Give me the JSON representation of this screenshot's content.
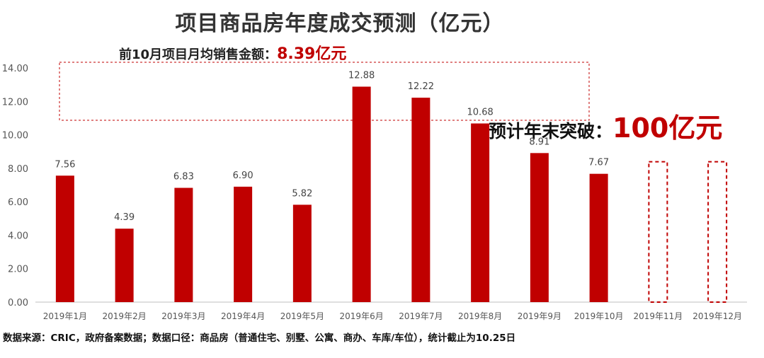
{
  "title": "项目商品房年度成交预测（亿元）",
  "avg_note": {
    "label": "前10月项目月均销售金额：",
    "value": "8.39亿元"
  },
  "forecast": {
    "label": "预计年末突破：",
    "value": "100亿元"
  },
  "source": "数据来源：CRIC，政府备案数据；数据口径：商品房（普通住宅、别墅、公寓、商办、车库/车位），统计截止为10.25日",
  "colors": {
    "bar": "#c00000",
    "accent": "#c00000"
  },
  "chart_data": {
    "type": "bar",
    "categories": [
      "2019年1月",
      "2019年2月",
      "2019年3月",
      "2019年4月",
      "2019年5月",
      "2019年6月",
      "2019年7月",
      "2019年8月",
      "2019年9月",
      "2019年10月",
      "2019年11月",
      "2019年12月"
    ],
    "values": [
      7.56,
      4.39,
      6.83,
      6.9,
      5.82,
      12.88,
      12.22,
      10.68,
      8.91,
      7.67,
      null,
      null
    ],
    "data_labels": [
      "7.56",
      "4.39",
      "6.83",
      "6.90",
      "5.82",
      "12.88",
      "12.22",
      "10.68",
      "8.91",
      "7.67",
      "",
      ""
    ],
    "forecast_values": [
      null,
      null,
      null,
      null,
      null,
      null,
      null,
      null,
      null,
      null,
      8.39,
      8.39
    ],
    "yticks": [
      "0.00",
      "2.00",
      "4.00",
      "6.00",
      "8.00",
      "10.00",
      "12.00",
      "14.00"
    ],
    "ylim": [
      0,
      14
    ],
    "grid": false,
    "xlabel": "",
    "ylabel": ""
  }
}
